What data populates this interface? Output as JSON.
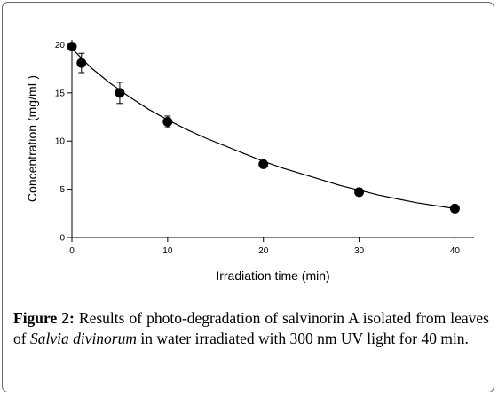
{
  "chart_data": {
    "type": "scatter",
    "title": "",
    "xlabel": "Irradiation time (min)",
    "ylabel": "Concentration (mg/mL)",
    "xlim": [
      0,
      42
    ],
    "ylim": [
      0,
      20.5
    ],
    "xticks": [
      0,
      10,
      20,
      30,
      40
    ],
    "yticks": [
      0,
      5,
      10,
      15,
      20
    ],
    "grid": false,
    "marker_color": "#000000",
    "series": [
      {
        "x": [
          0,
          1,
          5,
          10,
          20,
          30,
          40
        ],
        "y": [
          19.8,
          18.1,
          15.0,
          12.0,
          7.6,
          4.7,
          3.0
        ],
        "error": [
          0.2,
          1.0,
          1.1,
          0.6,
          0.2,
          0.3,
          0.2
        ]
      }
    ],
    "fit_curve": {
      "type": "exponential_decay",
      "x": [
        0,
        2,
        4,
        6,
        8,
        10,
        12,
        14,
        16,
        18,
        20,
        22,
        24,
        26,
        28,
        30,
        32,
        34,
        36,
        38,
        40
      ],
      "y": [
        19.6,
        17.6,
        16.0,
        14.6,
        13.3,
        12.2,
        11.2,
        10.3,
        9.5,
        8.7,
        7.9,
        7.2,
        6.6,
        6.0,
        5.4,
        4.9,
        4.4,
        4.0,
        3.6,
        3.3,
        3.0
      ]
    }
  },
  "caption": {
    "label": "Figure 2:",
    "text_before": " Results of photo-degradation of salvinorin A isolated from leaves of ",
    "italic": "Salvia divinorum",
    "text_after": " in water irradiated with 300 nm UV light for 40 min."
  }
}
